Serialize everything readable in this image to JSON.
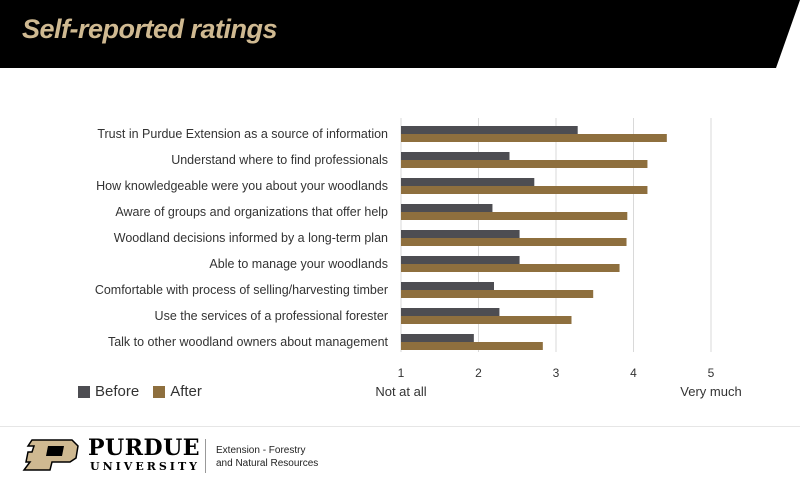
{
  "header": {
    "title": "Self-reported ratings"
  },
  "colors": {
    "banner": "#000000",
    "title": "#cfb991",
    "before": "#4d4d52",
    "after": "#8e6f3e",
    "grid": "#d9d9d9"
  },
  "chart_data": {
    "type": "bar",
    "orientation": "horizontal",
    "categories": [
      "Trust in Purdue Extension as a source of information",
      "Understand where to find professionals",
      "How knowledgeable were you about your woodlands",
      "Aware of groups and organizations that offer help",
      "Woodland decisions informed by a long-term plan",
      "Able to manage your woodlands",
      "Comfortable with process of selling/harvesting timber",
      "Use the services of a professional forester",
      "Talk to other woodland owners about management"
    ],
    "series": [
      {
        "name": "Before",
        "values": [
          3.28,
          2.4,
          2.72,
          2.18,
          2.53,
          2.53,
          2.2,
          2.27,
          1.94
        ]
      },
      {
        "name": "After",
        "values": [
          4.43,
          4.18,
          4.18,
          3.92,
          3.91,
          3.82,
          3.48,
          3.2,
          2.83
        ]
      }
    ],
    "xlim": [
      1,
      5
    ],
    "xticks": [
      "1",
      "2",
      "3",
      "4",
      "5"
    ],
    "x_end_labels": {
      "low": "Not at all",
      "high": "Very much"
    },
    "grid": true,
    "legend": "bottom-left"
  },
  "footer": {
    "logo_text": "P",
    "wordmark_top": "PURDUE",
    "wordmark_bottom": "UNIVERSITY",
    "dept_line1": "Extension - Forestry",
    "dept_line2": "and Natural Resources"
  }
}
